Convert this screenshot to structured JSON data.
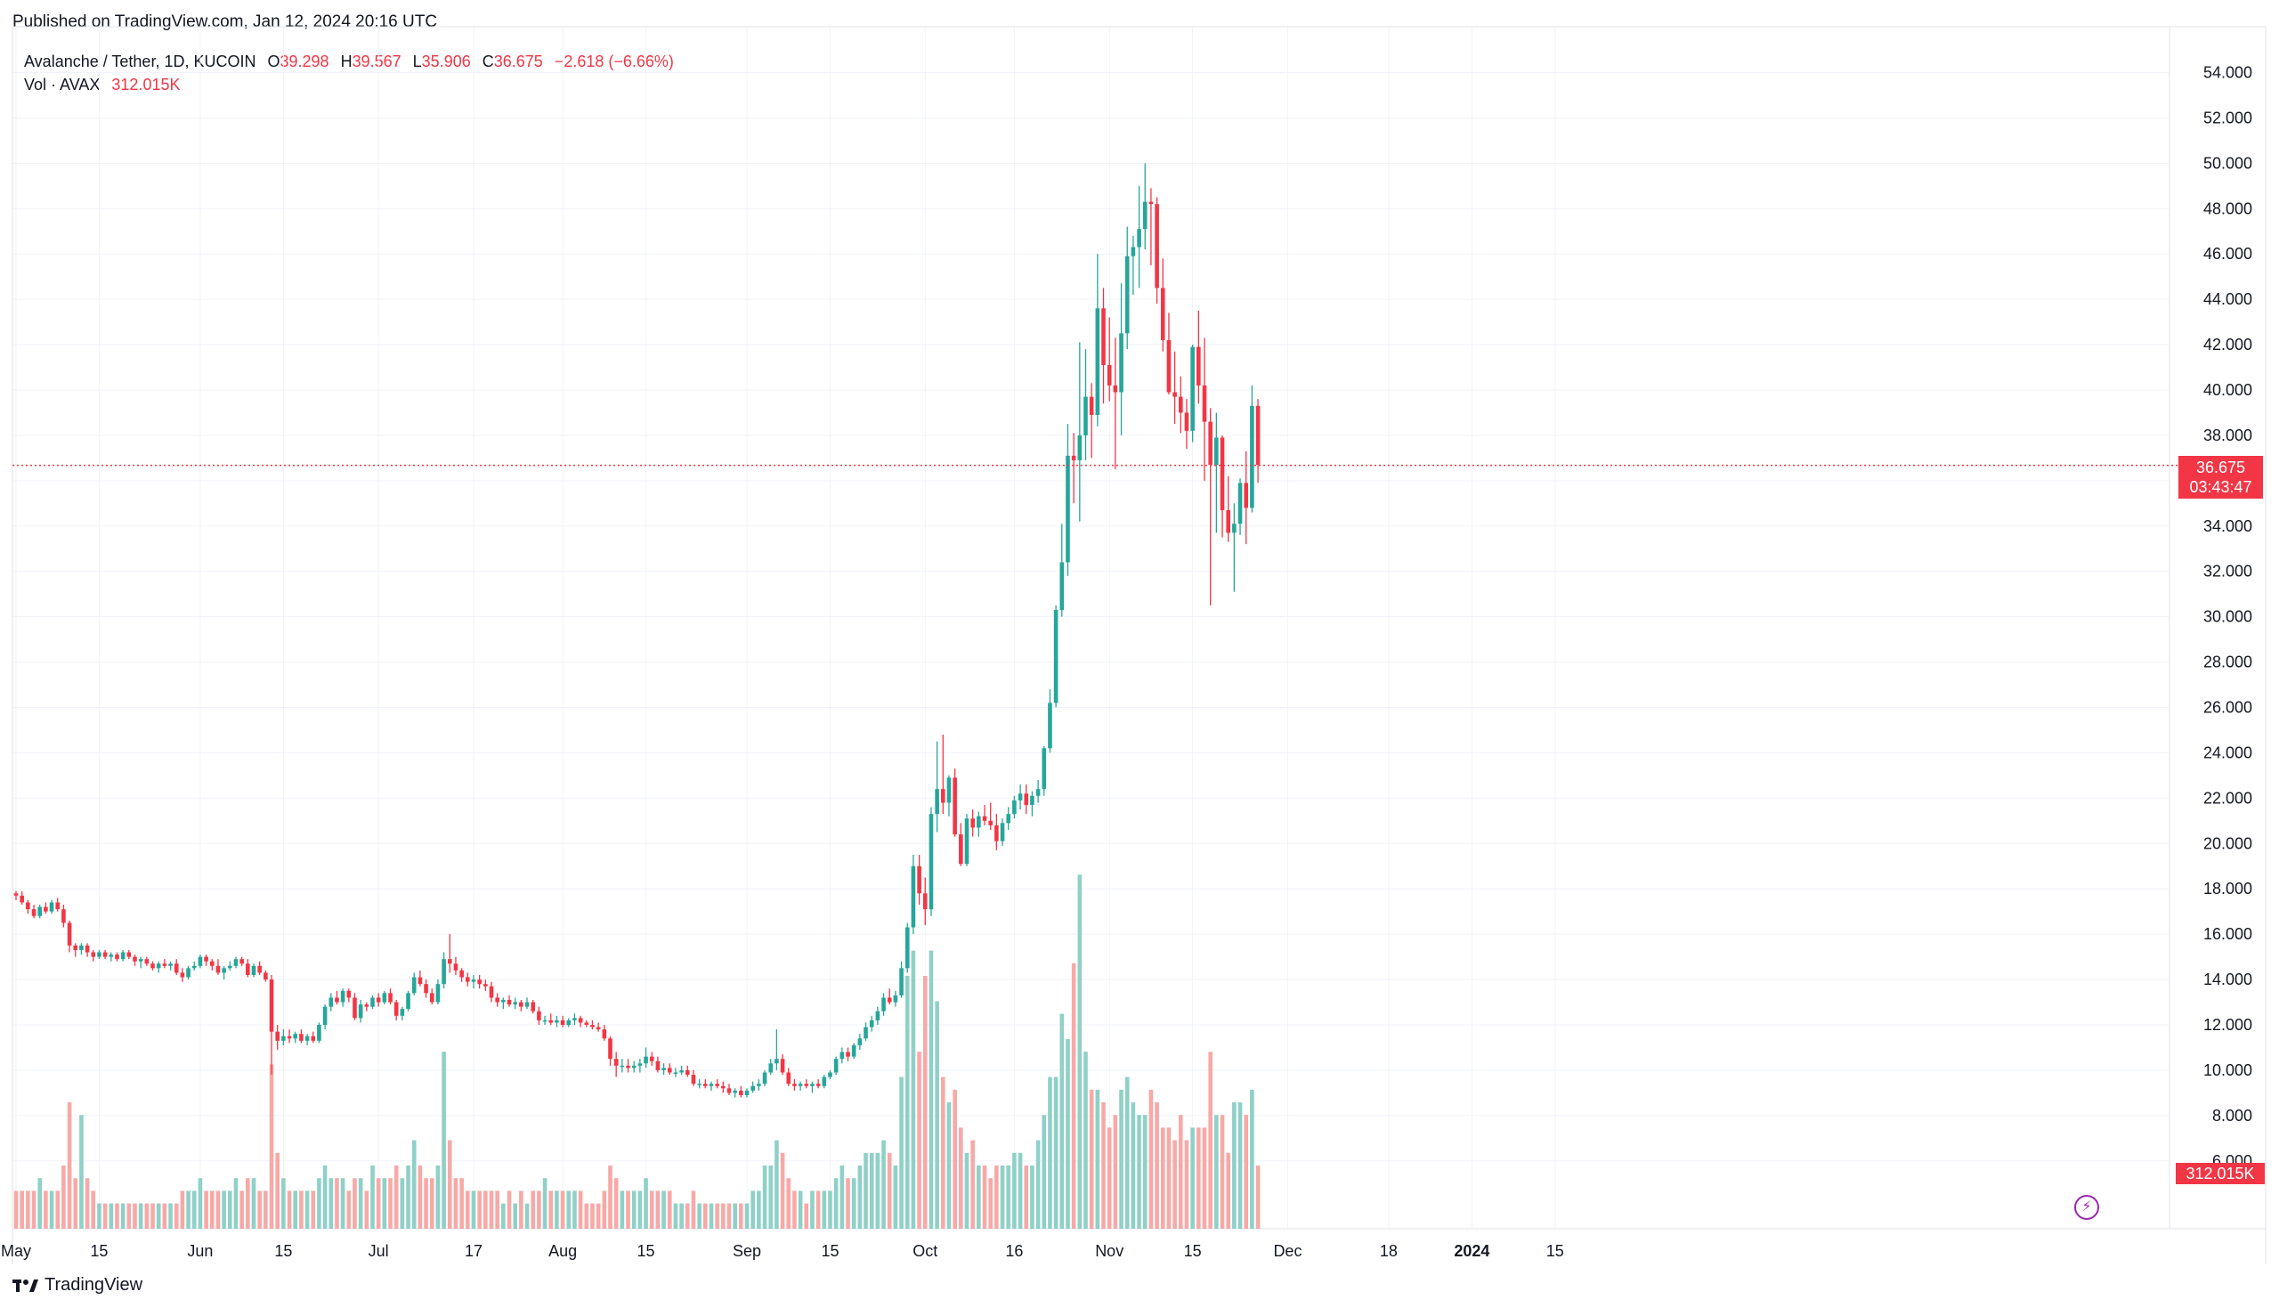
{
  "header": {
    "published": "Published on TradingView.com, Jan 12, 2024 20:16 UTC"
  },
  "legend": {
    "symbol": "Avalanche / Tether, 1D, KUCOIN",
    "o_label": "O",
    "o": "39.298",
    "h_label": "H",
    "h": "39.567",
    "l_label": "L",
    "l": "35.906",
    "c_label": "C",
    "c": "36.675",
    "change": "−2.618 (−6.66%)",
    "vol_label": "Vol · AVAX",
    "vol_value": "312.015K"
  },
  "badges": {
    "price": "36.675",
    "countdown": "03:43:47",
    "volume": "312.015K"
  },
  "footer": {
    "logo_text": "TradingView",
    "logo_mark": "17"
  },
  "colors": {
    "up": "#26A69A",
    "down": "#F23645",
    "vol_up": "#8FD0C7",
    "vol_down": "#F7A9A7",
    "grid": "#F0F3FA",
    "axis_text": "#131722"
  },
  "chart_data": {
    "type": "candlestick",
    "title": "Avalanche / Tether, 1D, KUCOIN",
    "y_range": [
      4.5,
      55
    ],
    "y_ticks": [
      "54.000",
      "52.000",
      "50.000",
      "48.000",
      "46.000",
      "44.000",
      "42.000",
      "40.000",
      "38.000",
      "36.000",
      "34.000",
      "32.000",
      "30.000",
      "28.000",
      "26.000",
      "24.000",
      "22.000",
      "20.000",
      "18.000",
      "16.000",
      "14.000",
      "12.000",
      "10.000",
      "8.000",
      "6.000"
    ],
    "x_ticks": [
      {
        "label": "May",
        "day": 0
      },
      {
        "label": "15",
        "day": 14
      },
      {
        "label": "Jun",
        "day": 31
      },
      {
        "label": "15",
        "day": 45
      },
      {
        "label": "Jul",
        "day": 61
      },
      {
        "label": "17",
        "day": 77
      },
      {
        "label": "Aug",
        "day": 92
      },
      {
        "label": "15",
        "day": 106
      },
      {
        "label": "Sep",
        "day": 123
      },
      {
        "label": "15",
        "day": 137
      },
      {
        "label": "Oct",
        "day": 153
      },
      {
        "label": "16",
        "day": 168
      },
      {
        "label": "Nov",
        "day": 184
      },
      {
        "label": "15",
        "day": 198
      },
      {
        "label": "Dec",
        "day": 214
      },
      {
        "label": "18",
        "day": 231
      },
      {
        "label": "2024",
        "day": 245
      },
      {
        "label": "15",
        "day": 259
      }
    ],
    "last_price": 36.675,
    "candles_note": "each candle: [open, high, low, close, volume_units]",
    "candles": [
      [
        17.8,
        17.9,
        17.5,
        17.7,
        3
      ],
      [
        17.7,
        17.9,
        17.3,
        17.4,
        3
      ],
      [
        17.4,
        17.5,
        16.9,
        17.1,
        3
      ],
      [
        17.1,
        17.3,
        16.7,
        16.8,
        3
      ],
      [
        16.8,
        17.3,
        16.7,
        17.2,
        4
      ],
      [
        17.2,
        17.4,
        16.9,
        17.0,
        3
      ],
      [
        17.0,
        17.5,
        16.9,
        17.4,
        3
      ],
      [
        17.4,
        17.6,
        17.0,
        17.1,
        3
      ],
      [
        17.1,
        17.3,
        16.3,
        16.5,
        5
      ],
      [
        16.5,
        16.6,
        15.2,
        15.5,
        10
      ],
      [
        15.5,
        15.6,
        15.0,
        15.3,
        4
      ],
      [
        15.3,
        15.6,
        15.1,
        15.5,
        9
      ],
      [
        15.5,
        15.6,
        15.0,
        15.2,
        4
      ],
      [
        15.2,
        15.3,
        14.8,
        15.0,
        3
      ],
      [
        15.0,
        15.3,
        14.9,
        15.2,
        2
      ],
      [
        15.2,
        15.3,
        14.9,
        15.0,
        2
      ],
      [
        15.0,
        15.2,
        14.8,
        15.1,
        2
      ],
      [
        15.1,
        15.2,
        14.8,
        14.9,
        2
      ],
      [
        14.9,
        15.3,
        14.8,
        15.2,
        2
      ],
      [
        15.2,
        15.3,
        14.9,
        15.0,
        2
      ],
      [
        15.0,
        15.1,
        14.6,
        14.8,
        2
      ],
      [
        14.8,
        15.0,
        14.5,
        14.9,
        2
      ],
      [
        14.9,
        15.0,
        14.6,
        14.7,
        2
      ],
      [
        14.7,
        14.8,
        14.4,
        14.5,
        2
      ],
      [
        14.5,
        14.8,
        14.3,
        14.7,
        2
      ],
      [
        14.7,
        14.9,
        14.5,
        14.6,
        2
      ],
      [
        14.6,
        14.8,
        14.4,
        14.7,
        2
      ],
      [
        14.7,
        14.9,
        14.2,
        14.3,
        2
      ],
      [
        14.3,
        14.5,
        13.9,
        14.1,
        3
      ],
      [
        14.1,
        14.6,
        14.0,
        14.5,
        3
      ],
      [
        14.5,
        14.8,
        14.4,
        14.6,
        3
      ],
      [
        14.6,
        15.1,
        14.5,
        15.0,
        4
      ],
      [
        15.0,
        15.1,
        14.6,
        14.8,
        3
      ],
      [
        14.8,
        14.9,
        14.4,
        14.6,
        3
      ],
      [
        14.6,
        14.9,
        14.2,
        14.3,
        3
      ],
      [
        14.3,
        14.6,
        14.0,
        14.5,
        3
      ],
      [
        14.5,
        14.8,
        14.4,
        14.6,
        3
      ],
      [
        14.6,
        15.0,
        14.5,
        14.9,
        4
      ],
      [
        14.9,
        15.0,
        14.6,
        14.7,
        3
      ],
      [
        14.7,
        14.9,
        14.1,
        14.2,
        4
      ],
      [
        14.2,
        14.7,
        14.1,
        14.6,
        4
      ],
      [
        14.6,
        14.8,
        14.2,
        14.3,
        3
      ],
      [
        14.3,
        14.4,
        13.9,
        14.0,
        3
      ],
      [
        14.0,
        14.2,
        9.8,
        11.7,
        13
      ],
      [
        11.7,
        12.0,
        10.9,
        11.3,
        6
      ],
      [
        11.3,
        11.8,
        11.1,
        11.5,
        4
      ],
      [
        11.5,
        11.8,
        11.2,
        11.4,
        3
      ],
      [
        11.4,
        11.7,
        11.2,
        11.6,
        3
      ],
      [
        11.6,
        11.8,
        11.2,
        11.3,
        3
      ],
      [
        11.3,
        11.6,
        11.1,
        11.5,
        3
      ],
      [
        11.5,
        11.7,
        11.2,
        11.3,
        3
      ],
      [
        11.3,
        12.1,
        11.2,
        12.0,
        4
      ],
      [
        12.0,
        12.9,
        11.8,
        12.8,
        5
      ],
      [
        12.8,
        13.4,
        12.6,
        13.2,
        4
      ],
      [
        13.2,
        13.5,
        12.9,
        13.0,
        4
      ],
      [
        13.0,
        13.6,
        12.8,
        13.5,
        4
      ],
      [
        13.5,
        13.6,
        13.0,
        13.2,
        3
      ],
      [
        13.2,
        13.4,
        12.2,
        12.3,
        4
      ],
      [
        12.3,
        13.1,
        12.1,
        12.9,
        4
      ],
      [
        12.9,
        13.0,
        12.6,
        12.8,
        3
      ],
      [
        12.8,
        13.3,
        12.7,
        13.2,
        5
      ],
      [
        13.2,
        13.4,
        12.8,
        13.0,
        4
      ],
      [
        13.0,
        13.5,
        12.9,
        13.4,
        4
      ],
      [
        13.4,
        13.6,
        12.9,
        13.0,
        4
      ],
      [
        13.0,
        13.1,
        12.2,
        12.4,
        5
      ],
      [
        12.4,
        12.8,
        12.2,
        12.7,
        4
      ],
      [
        12.7,
        13.5,
        12.6,
        13.4,
        5
      ],
      [
        13.4,
        14.3,
        13.3,
        14.1,
        7
      ],
      [
        14.1,
        14.4,
        13.7,
        13.8,
        5
      ],
      [
        13.8,
        14.0,
        13.2,
        13.4,
        4
      ],
      [
        13.4,
        13.6,
        12.9,
        13.0,
        4
      ],
      [
        13.0,
        14.0,
        12.9,
        13.8,
        5
      ],
      [
        13.8,
        15.2,
        13.6,
        14.9,
        14
      ],
      [
        14.9,
        16.0,
        14.3,
        14.7,
        7
      ],
      [
        14.7,
        15.0,
        14.2,
        14.4,
        4
      ],
      [
        14.4,
        14.5,
        13.9,
        14.1,
        4
      ],
      [
        14.1,
        14.3,
        13.7,
        13.9,
        3
      ],
      [
        13.9,
        14.2,
        13.6,
        14.0,
        3
      ],
      [
        14.0,
        14.2,
        13.6,
        13.8,
        3
      ],
      [
        13.8,
        14.0,
        13.5,
        13.7,
        3
      ],
      [
        13.7,
        13.9,
        13.0,
        13.2,
        3
      ],
      [
        13.2,
        13.4,
        12.8,
        13.0,
        3
      ],
      [
        13.0,
        13.2,
        12.7,
        13.1,
        2
      ],
      [
        13.1,
        13.3,
        12.8,
        12.9,
        3
      ],
      [
        12.9,
        13.2,
        12.7,
        13.0,
        2
      ],
      [
        13.0,
        13.1,
        12.6,
        12.8,
        3
      ],
      [
        12.8,
        13.2,
        12.7,
        13.0,
        2
      ],
      [
        13.0,
        13.1,
        12.5,
        12.6,
        3
      ],
      [
        12.6,
        12.8,
        12.0,
        12.2,
        3
      ],
      [
        12.2,
        12.4,
        12.0,
        12.2,
        4
      ],
      [
        12.2,
        12.5,
        12.0,
        12.1,
        3
      ],
      [
        12.1,
        12.4,
        11.9,
        12.2,
        3
      ],
      [
        12.2,
        12.4,
        11.9,
        12.0,
        3
      ],
      [
        12.0,
        12.3,
        11.9,
        12.2,
        3
      ],
      [
        12.2,
        12.5,
        12.0,
        12.3,
        3
      ],
      [
        12.3,
        12.4,
        11.9,
        12.1,
        3
      ],
      [
        12.1,
        12.2,
        11.9,
        12.0,
        2
      ],
      [
        12.0,
        12.2,
        11.8,
        11.9,
        2
      ],
      [
        11.9,
        12.1,
        11.7,
        11.8,
        2
      ],
      [
        11.8,
        12.0,
        11.3,
        11.4,
        3
      ],
      [
        11.4,
        11.5,
        10.2,
        10.5,
        5
      ],
      [
        10.5,
        10.8,
        9.7,
        10.2,
        4
      ],
      [
        10.2,
        10.5,
        9.9,
        10.2,
        3
      ],
      [
        10.2,
        10.5,
        9.9,
        10.1,
        3
      ],
      [
        10.1,
        10.4,
        9.9,
        10.2,
        3
      ],
      [
        10.2,
        10.5,
        9.9,
        10.3,
        3
      ],
      [
        10.3,
        11.0,
        10.1,
        10.6,
        4
      ],
      [
        10.6,
        10.8,
        10.2,
        10.4,
        3
      ],
      [
        10.4,
        10.6,
        9.9,
        10.0,
        3
      ],
      [
        10.0,
        10.3,
        9.8,
        10.1,
        3
      ],
      [
        10.1,
        10.3,
        9.8,
        9.9,
        3
      ],
      [
        9.9,
        10.1,
        9.7,
        9.9,
        2
      ],
      [
        9.9,
        10.2,
        9.8,
        10.0,
        2
      ],
      [
        10.0,
        10.2,
        9.7,
        9.8,
        2
      ],
      [
        9.8,
        10.0,
        9.3,
        9.4,
        3
      ],
      [
        9.4,
        9.6,
        9.2,
        9.4,
        2
      ],
      [
        9.4,
        9.6,
        9.2,
        9.3,
        2
      ],
      [
        9.3,
        9.5,
        9.1,
        9.4,
        2
      ],
      [
        9.4,
        9.6,
        9.2,
        9.3,
        2
      ],
      [
        9.3,
        9.5,
        9.0,
        9.2,
        2
      ],
      [
        9.2,
        9.4,
        8.9,
        9.0,
        2
      ],
      [
        9.0,
        9.2,
        8.8,
        9.1,
        2
      ],
      [
        9.1,
        9.3,
        8.8,
        8.9,
        2
      ],
      [
        8.9,
        9.2,
        8.8,
        9.1,
        2
      ],
      [
        9.1,
        9.5,
        9.0,
        9.3,
        3
      ],
      [
        9.3,
        9.6,
        9.1,
        9.4,
        3
      ],
      [
        9.4,
        10.0,
        9.3,
        9.9,
        5
      ],
      [
        9.9,
        10.5,
        9.8,
        10.3,
        5
      ],
      [
        10.3,
        11.8,
        10.0,
        10.5,
        7
      ],
      [
        10.5,
        10.7,
        9.8,
        9.9,
        6
      ],
      [
        9.9,
        10.1,
        9.3,
        9.4,
        4
      ],
      [
        9.4,
        9.6,
        9.1,
        9.3,
        3
      ],
      [
        9.3,
        9.5,
        9.1,
        9.4,
        3
      ],
      [
        9.4,
        9.6,
        9.2,
        9.3,
        2
      ],
      [
        9.3,
        9.5,
        9.0,
        9.4,
        3
      ],
      [
        9.4,
        9.6,
        9.2,
        9.3,
        3
      ],
      [
        9.3,
        9.8,
        9.2,
        9.7,
        3
      ],
      [
        9.7,
        10.0,
        9.6,
        9.9,
        3
      ],
      [
        9.9,
        10.6,
        9.8,
        10.5,
        4
      ],
      [
        10.5,
        11.0,
        10.3,
        10.8,
        5
      ],
      [
        10.8,
        11.0,
        10.4,
        10.6,
        4
      ],
      [
        10.6,
        11.2,
        10.5,
        11.1,
        4
      ],
      [
        11.1,
        11.6,
        10.9,
        11.4,
        5
      ],
      [
        11.4,
        12.1,
        11.3,
        11.9,
        6
      ],
      [
        11.9,
        12.4,
        11.7,
        12.2,
        6
      ],
      [
        12.2,
        12.8,
        12.0,
        12.6,
        6
      ],
      [
        12.6,
        13.4,
        12.4,
        13.2,
        7
      ],
      [
        13.2,
        13.6,
        12.9,
        13.0,
        6
      ],
      [
        13.0,
        13.5,
        12.8,
        13.3,
        5
      ],
      [
        13.3,
        14.8,
        13.2,
        14.5,
        12
      ],
      [
        14.5,
        16.5,
        14.3,
        16.3,
        20
      ],
      [
        16.3,
        19.5,
        16.0,
        19.0,
        22
      ],
      [
        19.0,
        19.5,
        17.3,
        17.8,
        14
      ],
      [
        17.8,
        18.5,
        16.4,
        17.1,
        20
      ],
      [
        17.1,
        21.6,
        16.8,
        21.3,
        22
      ],
      [
        21.3,
        24.5,
        20.5,
        22.4,
        18
      ],
      [
        22.4,
        24.8,
        21.3,
        21.8,
        12
      ],
      [
        21.8,
        23.0,
        21.2,
        22.9,
        10
      ],
      [
        22.9,
        23.3,
        20.3,
        20.4,
        11
      ],
      [
        20.4,
        20.9,
        19.0,
        19.1,
        8
      ],
      [
        19.1,
        21.3,
        19.0,
        21.1,
        6
      ],
      [
        21.1,
        21.5,
        20.3,
        20.7,
        7
      ],
      [
        20.7,
        21.4,
        20.3,
        21.2,
        5
      ],
      [
        21.2,
        21.7,
        20.8,
        21.0,
        5
      ],
      [
        21.0,
        21.8,
        20.6,
        20.8,
        4
      ],
      [
        20.8,
        21.3,
        19.7,
        20.1,
        5
      ],
      [
        20.1,
        21.1,
        19.9,
        20.9,
        5
      ],
      [
        20.9,
        21.6,
        20.6,
        21.3,
        5
      ],
      [
        21.3,
        22.1,
        21.1,
        21.9,
        6
      ],
      [
        21.9,
        22.6,
        21.5,
        22.2,
        6
      ],
      [
        22.2,
        22.6,
        21.3,
        21.7,
        5
      ],
      [
        21.7,
        22.3,
        21.2,
        22.1,
        5
      ],
      [
        22.1,
        22.8,
        21.8,
        22.4,
        7
      ],
      [
        22.4,
        24.3,
        22.1,
        24.2,
        9
      ],
      [
        24.2,
        26.8,
        24.0,
        26.2,
        12
      ],
      [
        26.2,
        30.5,
        26.0,
        30.3,
        12
      ],
      [
        30.3,
        34.1,
        30.0,
        32.4,
        17
      ],
      [
        32.4,
        38.5,
        31.8,
        37.1,
        15
      ],
      [
        37.1,
        38.1,
        35.0,
        36.9,
        21
      ],
      [
        36.9,
        42.1,
        34.2,
        38.0,
        28
      ],
      [
        38.0,
        41.8,
        36.9,
        39.7,
        14
      ],
      [
        39.7,
        40.3,
        37.0,
        38.9,
        11
      ],
      [
        38.9,
        46.0,
        38.4,
        43.6,
        11
      ],
      [
        43.6,
        44.5,
        39.4,
        41.1,
        10
      ],
      [
        41.1,
        43.2,
        39.5,
        40.2,
        8
      ],
      [
        40.2,
        42.3,
        36.5,
        39.9,
        9
      ],
      [
        39.9,
        44.7,
        38.0,
        42.5,
        11
      ],
      [
        42.5,
        47.2,
        41.8,
        45.9,
        12
      ],
      [
        45.9,
        46.8,
        44.2,
        46.3,
        10
      ],
      [
        46.3,
        49.0,
        44.5,
        47.1,
        9
      ],
      [
        47.1,
        50.0,
        46.2,
        48.3,
        9
      ],
      [
        48.3,
        48.9,
        45.5,
        48.2,
        11
      ],
      [
        48.2,
        48.5,
        43.8,
        44.5,
        10
      ],
      [
        44.5,
        45.8,
        41.7,
        42.2,
        8
      ],
      [
        42.2,
        43.4,
        39.8,
        39.9,
        8
      ],
      [
        39.9,
        41.7,
        38.5,
        39.7,
        7
      ],
      [
        39.7,
        40.6,
        38.1,
        39.0,
        9
      ],
      [
        39.0,
        39.6,
        37.4,
        38.2,
        7
      ],
      [
        38.2,
        42.0,
        37.7,
        41.9,
        8
      ],
      [
        41.9,
        43.5,
        39.4,
        40.2,
        8
      ],
      [
        40.2,
        42.3,
        36.0,
        38.6,
        8
      ],
      [
        38.6,
        39.2,
        30.5,
        36.7,
        14
      ],
      [
        36.7,
        39.0,
        33.7,
        37.9,
        9
      ],
      [
        37.9,
        38.0,
        33.5,
        34.7,
        9
      ],
      [
        34.7,
        36.2,
        33.3,
        33.7,
        6
      ],
      [
        33.7,
        35.0,
        31.1,
        34.1,
        10
      ],
      [
        34.1,
        36.1,
        33.6,
        35.9,
        10
      ],
      [
        35.9,
        37.3,
        33.2,
        34.8,
        9
      ],
      [
        34.8,
        40.2,
        34.6,
        39.3,
        11
      ],
      [
        39.3,
        39.6,
        35.9,
        36.7,
        5
      ]
    ]
  }
}
